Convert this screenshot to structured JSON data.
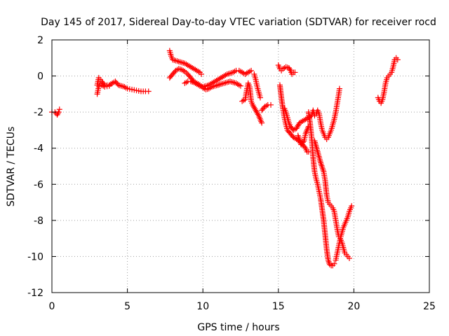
{
  "chart_data": {
    "type": "scatter",
    "title": "Day 145 of 2017, Sidereal Day-to-day VTEC variation (SDTVAR) for receiver rocd",
    "xlabel": "GPS time / hours",
    "ylabel": "SDTVAR / TECUs",
    "xlim": [
      0,
      25
    ],
    "ylim": [
      -12,
      2
    ],
    "xticks": [
      "0",
      "5",
      "10",
      "15",
      "20",
      "25"
    ],
    "yticks": [
      "2",
      "0",
      "-2",
      "-4",
      "-6",
      "-8",
      "-10",
      "-12"
    ],
    "grid": true,
    "marker": "plus",
    "marker_color": "#ff0000",
    "series": [
      {
        "segments": [
          [
            [
              0.0,
              -2.0
            ],
            [
              0.2,
              -2.0
            ],
            [
              0.35,
              -2.15
            ],
            [
              0.45,
              -2.0
            ],
            [
              0.5,
              -1.85
            ]
          ],
          [
            [
              3.0,
              -0.5
            ],
            [
              3.1,
              -0.1
            ],
            [
              3.2,
              -0.2
            ],
            [
              3.3,
              -0.3
            ],
            [
              3.5,
              -0.5
            ],
            [
              3.8,
              -0.5
            ],
            [
              4.0,
              -0.4
            ],
            [
              4.2,
              -0.3
            ],
            [
              4.4,
              -0.5
            ],
            [
              4.6,
              -0.55
            ],
            [
              4.8,
              -0.6
            ],
            [
              5.0,
              -0.7
            ],
            [
              5.3,
              -0.75
            ],
            [
              5.6,
              -0.8
            ],
            [
              5.9,
              -0.85
            ],
            [
              6.2,
              -0.85
            ],
            [
              6.4,
              -0.85
            ]
          ],
          [
            [
              3.0,
              -1.0
            ],
            [
              3.1,
              -0.6
            ],
            [
              3.2,
              -0.4
            ],
            [
              3.3,
              -0.5
            ],
            [
              3.5,
              -0.6
            ],
            [
              3.8,
              -0.55
            ]
          ],
          [
            [
              7.8,
              1.4
            ],
            [
              7.9,
              1.1
            ],
            [
              8.0,
              0.9
            ],
            [
              8.2,
              0.85
            ],
            [
              8.4,
              0.8
            ],
            [
              8.6,
              0.75
            ],
            [
              8.8,
              0.7
            ],
            [
              9.0,
              0.6
            ],
            [
              9.2,
              0.5
            ],
            [
              9.4,
              0.4
            ],
            [
              9.6,
              0.3
            ],
            [
              9.8,
              0.2
            ],
            [
              9.9,
              0.1
            ]
          ],
          [
            [
              7.8,
              -0.1
            ],
            [
              8.0,
              0.1
            ],
            [
              8.2,
              0.3
            ],
            [
              8.4,
              0.4
            ],
            [
              8.6,
              0.35
            ],
            [
              8.8,
              0.25
            ],
            [
              9.0,
              0.1
            ],
            [
              9.2,
              -0.1
            ],
            [
              9.4,
              -0.3
            ],
            [
              9.6,
              -0.4
            ],
            [
              9.8,
              -0.5
            ],
            [
              10.0,
              -0.65
            ],
            [
              10.2,
              -0.75
            ],
            [
              10.4,
              -0.7
            ],
            [
              10.6,
              -0.6
            ],
            [
              10.8,
              -0.55
            ],
            [
              11.0,
              -0.5
            ]
          ],
          [
            [
              8.8,
              -0.4
            ],
            [
              9.0,
              -0.3
            ],
            [
              9.2,
              -0.3
            ],
            [
              9.4,
              -0.35
            ],
            [
              9.6,
              -0.45
            ],
            [
              9.8,
              -0.55
            ],
            [
              10.0,
              -0.6
            ],
            [
              10.2,
              -0.55
            ],
            [
              10.4,
              -0.5
            ],
            [
              10.6,
              -0.4
            ],
            [
              10.8,
              -0.3
            ],
            [
              11.0,
              -0.2
            ],
            [
              11.2,
              -0.1
            ],
            [
              11.4,
              0.0
            ],
            [
              11.6,
              0.1
            ],
            [
              11.8,
              0.15
            ],
            [
              12.0,
              0.2
            ],
            [
              12.2,
              0.3
            ],
            [
              12.4,
              0.3
            ],
            [
              12.6,
              0.2
            ],
            [
              12.8,
              0.1
            ],
            [
              13.0,
              0.2
            ],
            [
              13.2,
              0.3
            ]
          ],
          [
            [
              11.0,
              -0.5
            ],
            [
              11.2,
              -0.45
            ],
            [
              11.4,
              -0.4
            ],
            [
              11.6,
              -0.35
            ],
            [
              11.8,
              -0.3
            ],
            [
              12.0,
              -0.35
            ],
            [
              12.2,
              -0.4
            ],
            [
              12.4,
              -0.5
            ],
            [
              12.5,
              -0.55
            ]
          ],
          [
            [
              12.6,
              -1.4
            ],
            [
              12.8,
              -1.3
            ],
            [
              12.9,
              -0.8
            ],
            [
              13.0,
              -0.4
            ],
            [
              13.1,
              -0.6
            ],
            [
              13.2,
              -1.4
            ],
            [
              13.3,
              -1.6
            ],
            [
              13.5,
              -1.9
            ],
            [
              13.7,
              -2.2
            ],
            [
              13.9,
              -2.6
            ]
          ],
          [
            [
              13.4,
              0.1
            ],
            [
              13.5,
              -0.2
            ],
            [
              13.6,
              -0.6
            ],
            [
              13.7,
              -0.9
            ],
            [
              13.8,
              -1.2
            ]
          ],
          [
            [
              13.9,
              -1.9
            ],
            [
              14.1,
              -1.7
            ],
            [
              14.3,
              -1.6
            ],
            [
              14.5,
              -1.6
            ]
          ],
          [
            [
              15.0,
              0.6
            ],
            [
              15.1,
              0.4
            ],
            [
              15.2,
              0.3
            ],
            [
              15.3,
              0.4
            ],
            [
              15.5,
              0.5
            ],
            [
              15.7,
              0.45
            ],
            [
              15.8,
              0.3
            ],
            [
              15.9,
              0.1
            ],
            [
              16.0,
              0.2
            ],
            [
              16.1,
              0.2
            ]
          ],
          [
            [
              15.1,
              -0.5
            ],
            [
              15.2,
              -1.2
            ],
            [
              15.3,
              -1.8
            ],
            [
              15.4,
              -2.3
            ],
            [
              15.5,
              -2.7
            ],
            [
              15.6,
              -3.0
            ],
            [
              15.8,
              -3.2
            ],
            [
              16.0,
              -3.4
            ],
            [
              16.2,
              -3.5
            ],
            [
              16.4,
              -3.6
            ],
            [
              16.6,
              -3.8
            ],
            [
              16.8,
              -4.0
            ],
            [
              16.9,
              -4.2
            ],
            [
              17.0,
              -4.2
            ]
          ],
          [
            [
              15.4,
              -1.8
            ],
            [
              15.5,
              -2.0
            ],
            [
              15.6,
              -2.3
            ],
            [
              15.7,
              -2.6
            ],
            [
              15.8,
              -2.8
            ],
            [
              16.0,
              -3.0
            ],
            [
              16.2,
              -2.9
            ],
            [
              16.4,
              -2.6
            ],
            [
              16.6,
              -2.5
            ],
            [
              16.8,
              -2.4
            ],
            [
              17.0,
              -2.3
            ],
            [
              17.2,
              -2.2
            ],
            [
              17.3,
              -1.9
            ],
            [
              17.4,
              -2.2
            ]
          ],
          [
            [
              16.3,
              -3.3
            ],
            [
              16.5,
              -3.8
            ],
            [
              16.7,
              -3.6
            ],
            [
              16.8,
              -3.2
            ],
            [
              17.0,
              -2.8
            ]
          ],
          [
            [
              17.0,
              -2.0
            ],
            [
              17.1,
              -2.6
            ],
            [
              17.2,
              -3.4
            ],
            [
              17.3,
              -4.5
            ],
            [
              17.4,
              -5.3
            ],
            [
              17.5,
              -5.7
            ],
            [
              17.6,
              -6.0
            ],
            [
              17.7,
              -6.4
            ],
            [
              17.8,
              -6.8
            ],
            [
              17.9,
              -7.4
            ],
            [
              18.0,
              -8.0
            ],
            [
              18.1,
              -8.8
            ],
            [
              18.2,
              -9.6
            ],
            [
              18.3,
              -10.2
            ],
            [
              18.4,
              -10.45
            ],
            [
              18.5,
              -10.5
            ],
            [
              18.6,
              -10.5
            ],
            [
              18.7,
              -10.4
            ]
          ],
          [
            [
              17.5,
              -2.1
            ],
            [
              17.6,
              -1.9
            ],
            [
              17.7,
              -2.1
            ],
            [
              17.8,
              -2.6
            ],
            [
              17.9,
              -3.0
            ],
            [
              18.0,
              -3.2
            ],
            [
              18.1,
              -3.4
            ],
            [
              18.2,
              -3.5
            ],
            [
              18.3,
              -3.4
            ],
            [
              18.4,
              -3.2
            ],
            [
              18.5,
              -3.0
            ],
            [
              18.6,
              -2.7
            ],
            [
              18.7,
              -2.4
            ],
            [
              18.8,
              -2.0
            ],
            [
              18.9,
              -1.5
            ],
            [
              19.0,
              -1.0
            ],
            [
              19.05,
              -0.7
            ]
          ],
          [
            [
              17.4,
              -3.6
            ],
            [
              17.6,
              -4.2
            ],
            [
              17.8,
              -4.8
            ],
            [
              18.0,
              -5.3
            ],
            [
              18.1,
              -5.8
            ],
            [
              18.2,
              -6.6
            ],
            [
              18.3,
              -7.0
            ],
            [
              18.4,
              -7.1
            ],
            [
              18.5,
              -7.2
            ],
            [
              18.6,
              -7.3
            ],
            [
              18.7,
              -7.5
            ],
            [
              18.8,
              -8.0
            ],
            [
              18.9,
              -8.5
            ],
            [
              19.0,
              -8.9
            ],
            [
              19.1,
              -9.0
            ],
            [
              19.2,
              -9.2
            ],
            [
              19.3,
              -9.5
            ],
            [
              19.4,
              -9.8
            ],
            [
              19.5,
              -9.9
            ],
            [
              19.6,
              -10.0
            ],
            [
              19.7,
              -10.1
            ]
          ],
          [
            [
              18.8,
              -10.2
            ],
            [
              18.9,
              -9.8
            ],
            [
              19.0,
              -9.4
            ],
            [
              19.1,
              -9.0
            ],
            [
              19.2,
              -8.7
            ],
            [
              19.3,
              -8.4
            ],
            [
              19.4,
              -8.2
            ],
            [
              19.5,
              -8.0
            ],
            [
              19.6,
              -7.8
            ],
            [
              19.7,
              -7.5
            ],
            [
              19.8,
              -7.3
            ],
            [
              19.85,
              -7.2
            ]
          ],
          [
            [
              21.6,
              -1.2
            ],
            [
              21.7,
              -1.4
            ],
            [
              21.8,
              -1.5
            ],
            [
              21.9,
              -1.3
            ],
            [
              22.0,
              -0.9
            ],
            [
              22.1,
              -0.4
            ],
            [
              22.2,
              -0.1
            ],
            [
              22.3,
              0.0
            ],
            [
              22.4,
              0.1
            ],
            [
              22.5,
              0.2
            ],
            [
              22.6,
              0.5
            ],
            [
              22.7,
              0.9
            ],
            [
              22.8,
              1.0
            ],
            [
              22.9,
              0.9
            ]
          ]
        ]
      }
    ]
  }
}
